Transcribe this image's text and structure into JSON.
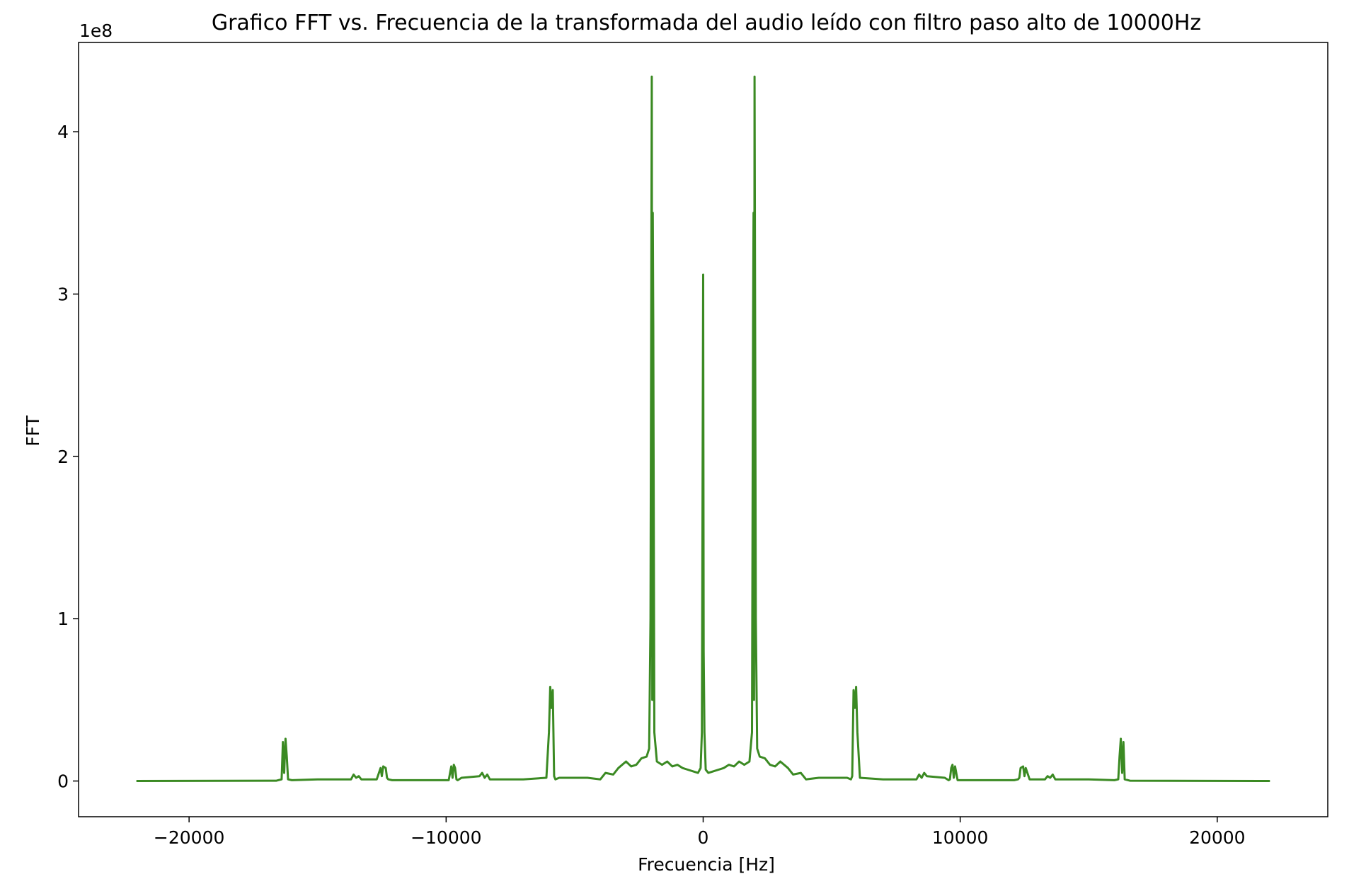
{
  "chart_data": {
    "type": "line",
    "title": "Grafico FFT vs. Frecuencia de la transformada del audio leído con filtro paso alto de 10000Hz",
    "xlabel": "Frecuencia [Hz]",
    "ylabel": "FFT",
    "y_offset_label": "1e8",
    "xlim": [
      -24300,
      24300
    ],
    "ylim": [
      -0.22,
      4.55
    ],
    "xticks": [
      -20000,
      -10000,
      0,
      10000,
      20000
    ],
    "xtick_labels": [
      "−20000",
      "−10000",
      "0",
      "10000",
      "20000"
    ],
    "yticks": [
      0,
      1,
      2,
      3,
      4
    ],
    "ytick_labels": [
      "0",
      "1",
      "2",
      "3",
      "4"
    ],
    "grid": false,
    "line_color": "#3b8a23",
    "series": [
      {
        "x": [
          -22050,
          -16600,
          -16400,
          -16350,
          -16300,
          -16250,
          -16200,
          -16150,
          -16000,
          -15000,
          -13700,
          -13600,
          -13500,
          -13400,
          -13300,
          -12700,
          -12550,
          -12500,
          -12450,
          -12350,
          -12300,
          -12250,
          -12100,
          -9900,
          -9800,
          -9750,
          -9700,
          -9650,
          -9600,
          -9550,
          -9400,
          -8700,
          -8600,
          -8500,
          -8400,
          -8300,
          -7000,
          -6100,
          -6000,
          -5950,
          -5900,
          -5850,
          -5800,
          -5750,
          -5600,
          -4500,
          -4000,
          -3800,
          -3500,
          -3300,
          -3000,
          -2800,
          -2600,
          -2400,
          -2200,
          -2100,
          -2050,
          -2000,
          -1980,
          -1960,
          -1940,
          -1900,
          -1800,
          -1600,
          -1400,
          -1200,
          -1000,
          -800,
          -600,
          -400,
          -200,
          -100,
          -50,
          0,
          20,
          50,
          100,
          200,
          400,
          600,
          800,
          1000,
          1200,
          1400,
          1600,
          1800,
          1900,
          1940,
          1960,
          1980,
          2000,
          2050,
          2100,
          2200,
          2400,
          2600,
          2800,
          3000,
          3300,
          3500,
          3800,
          4000,
          4500,
          5600,
          5750,
          5800,
          5850,
          5900,
          5950,
          6000,
          6100,
          7000,
          8300,
          8400,
          8500,
          8600,
          8700,
          9400,
          9550,
          9600,
          9650,
          9700,
          9750,
          9800,
          9900,
          12100,
          12250,
          12300,
          12350,
          12450,
          12500,
          12550,
          12700,
          13300,
          13400,
          13500,
          13600,
          13700,
          15000,
          16000,
          16150,
          16200,
          16250,
          16300,
          16350,
          16400,
          16600,
          22050
        ],
        "y": [
          0,
          0.002,
          0.01,
          0.24,
          0.05,
          0.26,
          0.15,
          0.01,
          0.005,
          0.01,
          0.01,
          0.04,
          0.02,
          0.03,
          0.01,
          0.01,
          0.08,
          0.03,
          0.09,
          0.08,
          0.02,
          0.01,
          0.005,
          0.005,
          0.09,
          0.02,
          0.1,
          0.08,
          0.01,
          0.005,
          0.02,
          0.03,
          0.05,
          0.02,
          0.04,
          0.01,
          0.01,
          0.02,
          0.3,
          0.58,
          0.45,
          0.56,
          0.03,
          0.01,
          0.02,
          0.02,
          0.01,
          0.05,
          0.04,
          0.08,
          0.12,
          0.09,
          0.1,
          0.14,
          0.15,
          0.2,
          1.0,
          4.34,
          0.5,
          3.5,
          2.8,
          0.3,
          0.12,
          0.1,
          0.12,
          0.09,
          0.1,
          0.08,
          0.07,
          0.06,
          0.05,
          0.08,
          0.3,
          3.12,
          0.8,
          0.3,
          0.07,
          0.05,
          0.06,
          0.07,
          0.08,
          0.1,
          0.09,
          0.12,
          0.1,
          0.12,
          0.3,
          2.8,
          3.5,
          0.5,
          4.34,
          1.0,
          0.2,
          0.15,
          0.14,
          0.1,
          0.09,
          0.12,
          0.08,
          0.04,
          0.05,
          0.01,
          0.02,
          0.02,
          0.01,
          0.03,
          0.56,
          0.45,
          0.58,
          0.3,
          0.02,
          0.01,
          0.01,
          0.04,
          0.02,
          0.05,
          0.03,
          0.02,
          0.005,
          0.01,
          0.08,
          0.1,
          0.02,
          0.09,
          0.005,
          0.005,
          0.01,
          0.02,
          0.08,
          0.09,
          0.03,
          0.08,
          0.01,
          0.01,
          0.03,
          0.02,
          0.04,
          0.01,
          0.01,
          0.005,
          0.01,
          0.15,
          0.26,
          0.05,
          0.24,
          0.01,
          0.002,
          0
        ]
      }
    ]
  }
}
